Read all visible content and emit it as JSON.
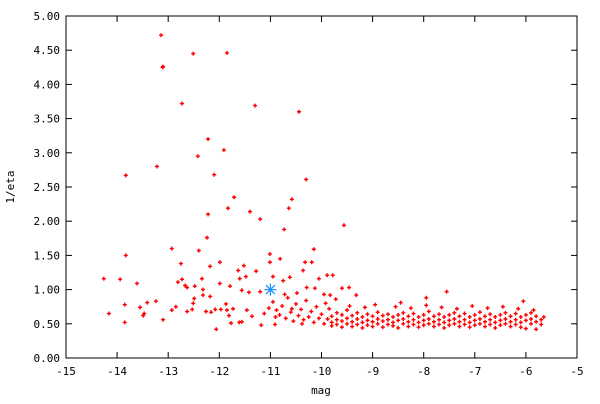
{
  "chart_data": {
    "type": "scatter",
    "title": "",
    "xlabel": "mag",
    "ylabel": "1/eta",
    "xlim": [
      -15,
      -5
    ],
    "ylim": [
      0,
      5
    ],
    "grid": false,
    "xticks": [
      "-15",
      "-14",
      "-13",
      "-12",
      "-11",
      "-10",
      "-9",
      "-8",
      "-7",
      "-6",
      "-5"
    ],
    "yticks": [
      "0.00",
      "0.50",
      "1.00",
      "1.50",
      "2.00",
      "2.50",
      "3.00",
      "3.50",
      "4.00",
      "4.50",
      "5.00"
    ],
    "series": [
      {
        "color": "#ff0000",
        "marker": "plus",
        "points": [
          [
            -13.14,
            4.72
          ],
          [
            -12.51,
            4.45
          ],
          [
            -11.85,
            4.46
          ],
          [
            -13.1,
            4.26
          ],
          [
            -13.11,
            4.25
          ],
          [
            -12.73,
            3.72
          ],
          [
            -11.3,
            3.69
          ],
          [
            -10.44,
            3.6
          ],
          [
            -12.22,
            3.2
          ],
          [
            -11.91,
            3.04
          ],
          [
            -12.42,
            2.95
          ],
          [
            -13.22,
            2.8
          ],
          [
            -12.1,
            2.68
          ],
          [
            -13.83,
            2.67
          ],
          [
            -10.3,
            2.61
          ],
          [
            -11.71,
            2.35
          ],
          [
            -10.58,
            2.32
          ],
          [
            -11.83,
            2.19
          ],
          [
            -10.64,
            2.19
          ],
          [
            -12.22,
            2.1
          ],
          [
            -11.4,
            2.14
          ],
          [
            -11.2,
            2.03
          ],
          [
            -10.73,
            1.88
          ],
          [
            -9.56,
            1.94
          ],
          [
            -12.24,
            1.76
          ],
          [
            -12.93,
            1.6
          ],
          [
            -12.4,
            1.57
          ],
          [
            -13.83,
            1.5
          ],
          [
            -10.15,
            1.59
          ],
          [
            -11.01,
            1.52
          ],
          [
            -12.75,
            1.38
          ],
          [
            -11.99,
            1.4
          ],
          [
            -11.01,
            1.4
          ],
          [
            -10.81,
            1.45
          ],
          [
            -12.18,
            1.34
          ],
          [
            -11.52,
            1.35
          ],
          [
            -11.63,
            1.28
          ],
          [
            -11.28,
            1.27
          ],
          [
            -10.32,
            1.4
          ],
          [
            -10.19,
            1.4
          ],
          [
            -10.36,
            1.28
          ],
          [
            -14.26,
            1.16
          ],
          [
            -13.94,
            1.15
          ],
          [
            -13.61,
            1.09
          ],
          [
            -9.89,
            1.21
          ],
          [
            -9.78,
            1.21
          ],
          [
            -10.05,
            1.16
          ],
          [
            -12.73,
            1.15
          ],
          [
            -12.81,
            1.11
          ],
          [
            -12.34,
            1.16
          ],
          [
            -12.48,
            1.05
          ],
          [
            -12.67,
            1.06
          ],
          [
            -12.63,
            1.03
          ],
          [
            -12.32,
            1.0
          ],
          [
            -12.32,
            0.92
          ],
          [
            -12.18,
            0.9
          ],
          [
            -11.99,
            1.09
          ],
          [
            -11.79,
            1.05
          ],
          [
            -11.6,
            1.16
          ],
          [
            -11.48,
            1.19
          ],
          [
            -11.56,
            0.99
          ],
          [
            -11.42,
            0.96
          ],
          [
            -11.2,
            0.97
          ],
          [
            -10.95,
            1.19
          ],
          [
            -10.75,
            1.13
          ],
          [
            -10.62,
            1.18
          ],
          [
            -10.29,
            1.03
          ],
          [
            -10.13,
            1.02
          ],
          [
            -9.83,
            0.92
          ],
          [
            -9.72,
            0.86
          ],
          [
            -9.6,
            1.02
          ],
          [
            -9.46,
            1.03
          ],
          [
            -9.32,
            0.92
          ],
          [
            -13.85,
            0.78
          ],
          [
            -14.16,
            0.65
          ],
          [
            -13.85,
            0.52
          ],
          [
            -13.55,
            0.74
          ],
          [
            -13.47,
            0.65
          ],
          [
            -13.49,
            0.62
          ],
          [
            -13.41,
            0.81
          ],
          [
            -13.24,
            0.83
          ],
          [
            -13.1,
            0.56
          ],
          [
            -12.93,
            0.7
          ],
          [
            -12.85,
            0.75
          ],
          [
            -12.63,
            0.68
          ],
          [
            -12.53,
            0.71
          ],
          [
            -12.51,
            0.8
          ],
          [
            -12.49,
            0.87
          ],
          [
            -12.26,
            0.68
          ],
          [
            -12.16,
            0.67
          ],
          [
            -12.06,
            0.42
          ],
          [
            -12.08,
            0.71
          ],
          [
            -11.97,
            0.71
          ],
          [
            -11.87,
            0.79
          ],
          [
            -11.85,
            0.7
          ],
          [
            -11.81,
            0.62
          ],
          [
            -11.77,
            0.51
          ],
          [
            -11.73,
            0.72
          ],
          [
            -11.61,
            0.52
          ],
          [
            -11.56,
            0.53
          ],
          [
            -11.46,
            0.7
          ],
          [
            -11.36,
            0.61
          ],
          [
            -11.18,
            0.48
          ],
          [
            -11.12,
            0.65
          ],
          [
            -10.91,
            0.49
          ],
          [
            -11.03,
            0.73
          ],
          [
            -10.95,
            0.82
          ],
          [
            -10.88,
            0.7
          ],
          [
            -10.82,
            0.63
          ],
          [
            -10.77,
            0.76
          ],
          [
            -10.7,
            0.58
          ],
          [
            -10.66,
            0.88
          ],
          [
            -10.6,
            0.67
          ],
          [
            -10.55,
            0.54
          ],
          [
            -10.5,
            0.79
          ],
          [
            -10.45,
            0.62
          ],
          [
            -10.4,
            0.71
          ],
          [
            -10.35,
            0.56
          ],
          [
            -10.3,
            0.84
          ],
          [
            -10.25,
            0.6
          ],
          [
            -10.2,
            0.68
          ],
          [
            -10.15,
            0.52
          ],
          [
            -10.1,
            0.75
          ],
          [
            -10.05,
            0.58
          ],
          [
            -10.0,
            0.64
          ],
          [
            -9.95,
            0.5
          ],
          [
            -9.92,
            0.8
          ],
          [
            -9.88,
            0.57
          ],
          [
            -10.72,
            0.93
          ],
          [
            -10.48,
            0.95
          ],
          [
            -10.9,
            0.6
          ],
          [
            -10.58,
            0.72
          ],
          [
            -10.38,
            0.5
          ],
          [
            -9.8,
            0.52
          ],
          [
            -9.8,
            0.61
          ],
          [
            -9.8,
            0.47
          ],
          [
            -9.7,
            0.56
          ],
          [
            -9.7,
            0.66
          ],
          [
            -9.7,
            0.49
          ],
          [
            -9.6,
            0.54
          ],
          [
            -9.6,
            0.63
          ],
          [
            -9.6,
            0.45
          ],
          [
            -9.5,
            0.58
          ],
          [
            -9.5,
            0.5
          ],
          [
            -9.5,
            0.7
          ],
          [
            -9.4,
            0.53
          ],
          [
            -9.4,
            0.62
          ],
          [
            -9.4,
            0.46
          ],
          [
            -9.3,
            0.57
          ],
          [
            -9.3,
            0.49
          ],
          [
            -9.3,
            0.66
          ],
          [
            -9.2,
            0.52
          ],
          [
            -9.2,
            0.6
          ],
          [
            -9.2,
            0.44
          ],
          [
            -9.1,
            0.55
          ],
          [
            -9.1,
            0.64
          ],
          [
            -9.1,
            0.48
          ],
          [
            -9.0,
            0.53
          ],
          [
            -9.0,
            0.61
          ],
          [
            -9.0,
            0.46
          ],
          [
            -8.9,
            0.57
          ],
          [
            -8.9,
            0.5
          ],
          [
            -8.9,
            0.67
          ],
          [
            -8.8,
            0.54
          ],
          [
            -8.8,
            0.62
          ],
          [
            -8.8,
            0.45
          ],
          [
            -8.7,
            0.56
          ],
          [
            -8.7,
            0.49
          ],
          [
            -8.7,
            0.64
          ],
          [
            -8.6,
            0.52
          ],
          [
            -8.6,
            0.6
          ],
          [
            -8.6,
            0.47
          ],
          [
            -8.5,
            0.55
          ],
          [
            -8.5,
            0.63
          ],
          [
            -8.5,
            0.44
          ],
          [
            -8.4,
            0.57
          ],
          [
            -8.4,
            0.5
          ],
          [
            -8.4,
            0.66
          ],
          [
            -8.3,
            0.53
          ],
          [
            -8.3,
            0.61
          ],
          [
            -8.3,
            0.46
          ],
          [
            -8.2,
            0.56
          ],
          [
            -8.2,
            0.49
          ],
          [
            -8.2,
            0.65
          ],
          [
            -8.1,
            0.52
          ],
          [
            -8.1,
            0.6
          ],
          [
            -8.1,
            0.45
          ],
          [
            -8.0,
            0.55
          ],
          [
            -8.0,
            0.63
          ],
          [
            -8.0,
            0.48
          ],
          [
            -7.9,
            0.57
          ],
          [
            -7.9,
            0.5
          ],
          [
            -7.9,
            0.68
          ],
          [
            -7.8,
            0.53
          ],
          [
            -7.8,
            0.61
          ],
          [
            -7.8,
            0.46
          ],
          [
            -7.7,
            0.56
          ],
          [
            -7.7,
            0.49
          ],
          [
            -7.7,
            0.64
          ],
          [
            -7.6,
            0.52
          ],
          [
            -7.6,
            0.6
          ],
          [
            -7.6,
            0.44
          ],
          [
            -7.5,
            0.55
          ],
          [
            -7.5,
            0.63
          ],
          [
            -7.5,
            0.48
          ],
          [
            -7.4,
            0.57
          ],
          [
            -7.4,
            0.5
          ],
          [
            -7.4,
            0.66
          ],
          [
            -7.3,
            0.53
          ],
          [
            -7.3,
            0.61
          ],
          [
            -7.3,
            0.46
          ],
          [
            -7.2,
            0.56
          ],
          [
            -7.2,
            0.49
          ],
          [
            -7.2,
            0.65
          ],
          [
            -7.1,
            0.52
          ],
          [
            -7.1,
            0.6
          ],
          [
            -7.1,
            0.45
          ],
          [
            -7.0,
            0.55
          ],
          [
            -7.0,
            0.63
          ],
          [
            -7.0,
            0.48
          ],
          [
            -6.9,
            0.57
          ],
          [
            -6.9,
            0.5
          ],
          [
            -6.9,
            0.67
          ],
          [
            -6.8,
            0.53
          ],
          [
            -6.8,
            0.61
          ],
          [
            -6.8,
            0.46
          ],
          [
            -6.7,
            0.56
          ],
          [
            -6.7,
            0.49
          ],
          [
            -6.7,
            0.64
          ],
          [
            -6.6,
            0.52
          ],
          [
            -6.6,
            0.6
          ],
          [
            -6.6,
            0.44
          ],
          [
            -6.5,
            0.55
          ],
          [
            -6.5,
            0.63
          ],
          [
            -6.5,
            0.48
          ],
          [
            -6.4,
            0.57
          ],
          [
            -6.4,
            0.5
          ],
          [
            -6.4,
            0.66
          ],
          [
            -6.3,
            0.53
          ],
          [
            -6.3,
            0.61
          ],
          [
            -6.3,
            0.46
          ],
          [
            -6.2,
            0.56
          ],
          [
            -6.2,
            0.49
          ],
          [
            -6.2,
            0.65
          ],
          [
            -6.1,
            0.52
          ],
          [
            -6.1,
            0.6
          ],
          [
            -6.1,
            0.45
          ],
          [
            -6.0,
            0.55
          ],
          [
            -6.0,
            0.63
          ],
          [
            -6.0,
            0.43
          ],
          [
            -5.9,
            0.57
          ],
          [
            -5.9,
            0.5
          ],
          [
            -5.9,
            0.66
          ],
          [
            -5.8,
            0.53
          ],
          [
            -5.8,
            0.61
          ],
          [
            -5.8,
            0.42
          ],
          [
            -5.7,
            0.56
          ],
          [
            -5.7,
            0.49
          ],
          [
            -5.65,
            0.6
          ],
          [
            -9.85,
            0.72
          ],
          [
            -9.45,
            0.76
          ],
          [
            -9.15,
            0.74
          ],
          [
            -8.95,
            0.78
          ],
          [
            -8.55,
            0.75
          ],
          [
            -8.25,
            0.73
          ],
          [
            -7.95,
            0.77
          ],
          [
            -7.65,
            0.74
          ],
          [
            -7.35,
            0.72
          ],
          [
            -7.05,
            0.76
          ],
          [
            -6.75,
            0.73
          ],
          [
            -6.45,
            0.75
          ],
          [
            -6.15,
            0.72
          ],
          [
            -5.85,
            0.7
          ],
          [
            -9.95,
            0.93
          ],
          [
            -7.55,
            0.97
          ],
          [
            -8.45,
            0.81
          ],
          [
            -6.05,
            0.83
          ],
          [
            -7.95,
            0.88
          ]
        ]
      },
      {
        "color": "#1e90ff",
        "marker": "star",
        "points": [
          [
            -11.0,
            1.0
          ]
        ]
      }
    ]
  }
}
